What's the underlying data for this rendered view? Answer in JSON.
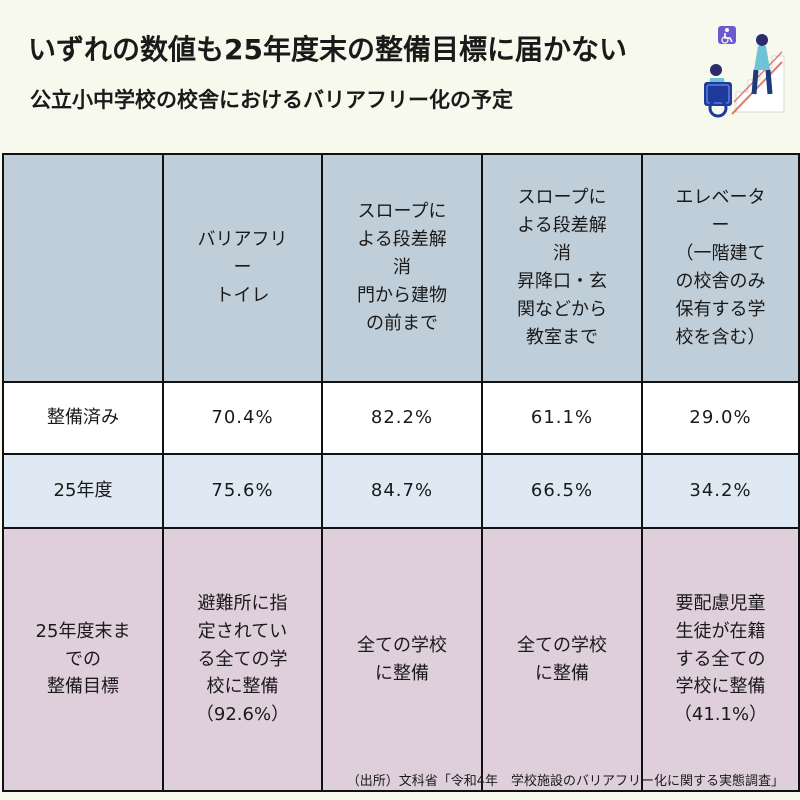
{
  "title": "いずれの数値も25年度末の整備目標に届かない",
  "subtitle": "公立小中学校の校舎におけるバリアフリー化の予定",
  "illustration": {
    "icon": "wheelchair-user-icon"
  },
  "chart_data": {
    "type": "table",
    "columns": [
      "",
      "バリアフリー\nトイレ",
      "スロープによる段差解消\n門から建物の前まで",
      "スロープによる段差解消\n昇降口・玄関などから教室まで",
      "エレベーター\n（一階建ての校舎のみ保有する学校を含む）"
    ],
    "columns_display": [
      "",
      "バリアフリ\nー\nトイレ",
      "スロープに\nよる段差解\n消\n門から建物\nの前まで",
      "スロープに\nよる段差解\n消\n昇降口・玄\n関などから\n教室まで",
      "エレベータ\nー\n（一階建て\nの校舎のみ\n保有する学\n校を含む）"
    ],
    "rows": [
      {
        "label": "整備済み",
        "values": [
          "70.4%",
          "82.2%",
          "61.1%",
          "29.0%"
        ]
      },
      {
        "label": "25年度",
        "values": [
          "75.6%",
          "84.7%",
          "66.5%",
          "34.2%"
        ]
      },
      {
        "label": "25年度末ま\nでの\n整備目標",
        "values": [
          "避難所に指\n定されてい\nる全ての学\n校に整備\n（92.6%）",
          "全ての学校\nに整備",
          "全ての学校\nに整備",
          "要配慮児童\n生徒が在籍\nする全ての\n学校に整備\n（41.1%）"
        ]
      }
    ],
    "colors": {
      "header": "#c0ced9",
      "row_current": "#ffffff",
      "row_fy25": "#dfe9f3",
      "row_target": "#dfcfdb",
      "background": "#f6f9ec"
    }
  },
  "source": "（出所）文科省「令和4年　学校施設のバリアフリー化に関する実態調査」"
}
